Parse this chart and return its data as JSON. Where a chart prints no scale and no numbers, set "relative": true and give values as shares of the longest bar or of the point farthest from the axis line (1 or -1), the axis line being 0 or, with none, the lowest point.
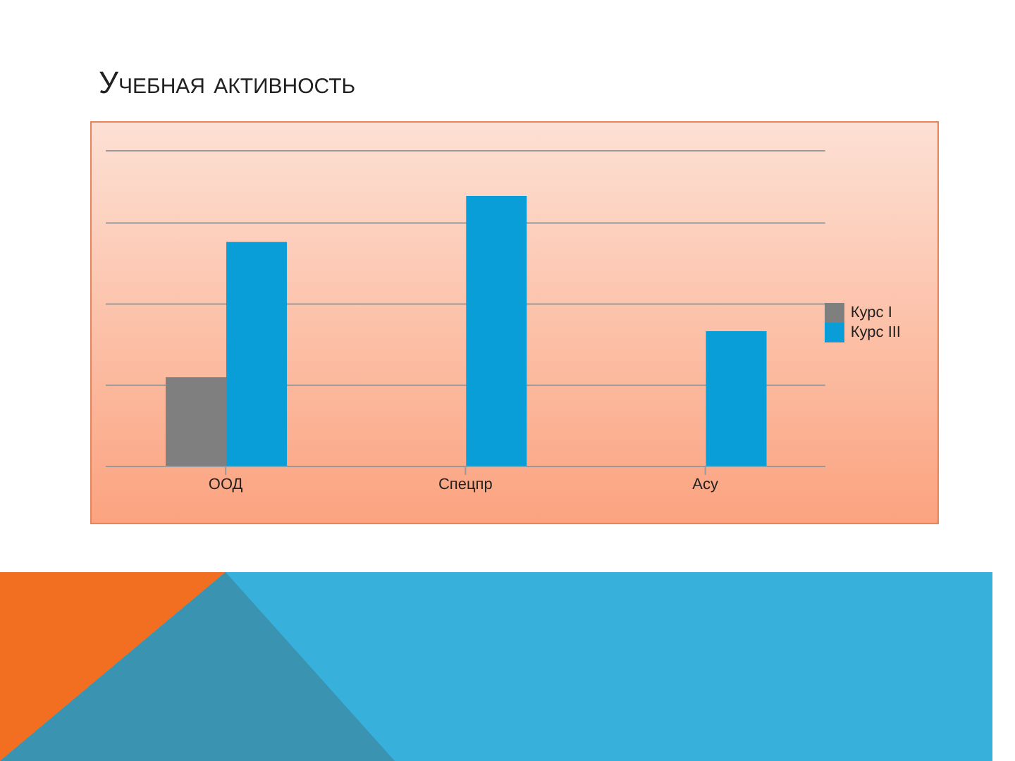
{
  "chart_data": {
    "type": "bar",
    "title": "Учебная активность",
    "relative": true,
    "categories": [
      "ООД",
      "Спецпр",
      "Асу"
    ],
    "series": [
      {
        "name": "Курс I",
        "color": "#7f7f7f",
        "values": [
          0.33,
          null,
          null
        ]
      },
      {
        "name": "Курс III",
        "color": "#0a9ed8",
        "values": [
          0.83,
          1,
          0.5
        ]
      }
    ],
    "grid": "y",
    "legend": "right"
  }
}
